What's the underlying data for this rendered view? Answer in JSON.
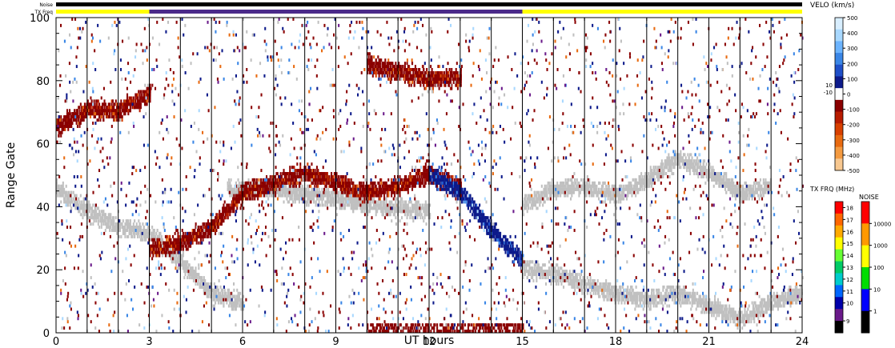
{
  "chart_data": {
    "type": "heatmap",
    "title": "",
    "xlabel": "UT hours",
    "ylabel": "Range Gate",
    "xlim": [
      0,
      24
    ],
    "ylim": [
      0,
      100
    ],
    "x_ticks": [
      "0",
      "3",
      "6",
      "9",
      "12",
      "15",
      "18",
      "21",
      "24"
    ],
    "y_ticks": [
      "0",
      "20",
      "40",
      "60",
      "80",
      "100"
    ],
    "minor_x_step_hours": 1,
    "vertical_gridlines_hours": [
      1,
      2,
      3,
      4,
      5,
      6,
      7,
      8,
      9,
      10,
      11,
      12,
      13,
      14,
      15,
      16,
      17,
      18,
      19,
      20,
      21,
      22,
      23
    ],
    "header": {
      "noise_label": "Noise",
      "txfreq_label": "TX Freq",
      "noise_color": "#000000",
      "txfreq_segments": [
        {
          "start": 0,
          "end": 3,
          "color": "#ffff00"
        },
        {
          "start": 3,
          "end": 15,
          "color": "#4b2a8a"
        },
        {
          "start": 15,
          "end": 24,
          "color": "#ffff00"
        }
      ]
    },
    "ground_scatter_color": "#c0c0c0",
    "velocity_scale": {
      "label": "VELO (km/s)",
      "ticks": [
        "500",
        "400",
        "300",
        "200",
        "100",
        "0",
        "-100",
        "-200",
        "-300",
        "-400",
        "-500"
      ],
      "small_ticks": [
        "10",
        "-10"
      ],
      "colors": [
        "#d8eeff",
        "#a8d8ff",
        "#6cb4ff",
        "#3a86e6",
        "#1f4fc8",
        "#0d1a8a",
        "#ffffff",
        "#8a0000",
        "#b81c00",
        "#d84000",
        "#e86a10",
        "#f49a40",
        "#f8c890"
      ]
    },
    "txfreq_scale": {
      "label": "TX FRQ (MHz)",
      "ticks": [
        "18",
        "17",
        "16",
        "15",
        "14",
        "13",
        "12",
        "11",
        "10",
        "9"
      ],
      "colors": [
        "#ff0000",
        "#ff6600",
        "#ffaa00",
        "#ffff00",
        "#66ff33",
        "#00cc66",
        "#00cccc",
        "#0066ff",
        "#0000aa",
        "#6a1a8a",
        "#000000"
      ]
    },
    "noise_scale": {
      "label": "NOISE",
      "ticks": [
        "10000",
        "1000",
        "100",
        "10",
        "1"
      ],
      "colors": [
        "#ff0000",
        "#ff9900",
        "#ffff00",
        "#00dd00",
        "#0000ff",
        "#000000"
      ]
    },
    "features": [
      {
        "kind": "ground-scatter",
        "label": "",
        "points": [
          [
            0,
            45
          ],
          [
            1,
            38
          ],
          [
            2,
            33
          ],
          [
            3,
            31
          ],
          [
            4,
            22
          ],
          [
            5,
            12
          ],
          [
            6,
            9
          ]
        ]
      },
      {
        "kind": "ground-scatter",
        "label": "",
        "points": [
          [
            5.5,
            45
          ],
          [
            7,
            45
          ],
          [
            9,
            42
          ],
          [
            10,
            40
          ],
          [
            12,
            38
          ]
        ]
      },
      {
        "kind": "negative-velocity",
        "label": "",
        "points": [
          [
            3,
            26
          ],
          [
            4,
            28
          ],
          [
            5,
            33
          ],
          [
            6,
            44
          ],
          [
            8,
            50
          ],
          [
            10,
            44
          ],
          [
            11,
            46
          ],
          [
            12,
            50
          ],
          [
            13,
            45
          ]
        ]
      },
      {
        "kind": "positive-velocity",
        "label": "",
        "points": [
          [
            12,
            50
          ],
          [
            13,
            44
          ],
          [
            14,
            32
          ],
          [
            15,
            22
          ]
        ]
      },
      {
        "kind": "negative-velocity",
        "label": "",
        "points": [
          [
            10,
            85
          ],
          [
            11,
            82
          ],
          [
            12,
            80
          ],
          [
            13,
            80
          ]
        ]
      },
      {
        "kind": "ground-scatter",
        "label": "",
        "points": [
          [
            15,
            40
          ],
          [
            16,
            45
          ],
          [
            17,
            46
          ],
          [
            18,
            43
          ],
          [
            19,
            48
          ],
          [
            20,
            55
          ],
          [
            21,
            50
          ],
          [
            22,
            44
          ],
          [
            23,
            46
          ]
        ]
      },
      {
        "kind": "ground-scatter",
        "label": "",
        "points": [
          [
            15,
            20
          ],
          [
            16,
            18
          ],
          [
            17,
            15
          ],
          [
            18,
            12
          ],
          [
            19,
            10
          ],
          [
            20,
            12
          ],
          [
            21,
            8
          ],
          [
            22,
            4
          ],
          [
            23,
            9
          ],
          [
            24,
            12
          ]
        ]
      },
      {
        "kind": "negative-velocity",
        "label": "",
        "points": [
          [
            3,
            75
          ],
          [
            2,
            70
          ],
          [
            1,
            70
          ],
          [
            0,
            65
          ]
        ]
      }
    ]
  }
}
